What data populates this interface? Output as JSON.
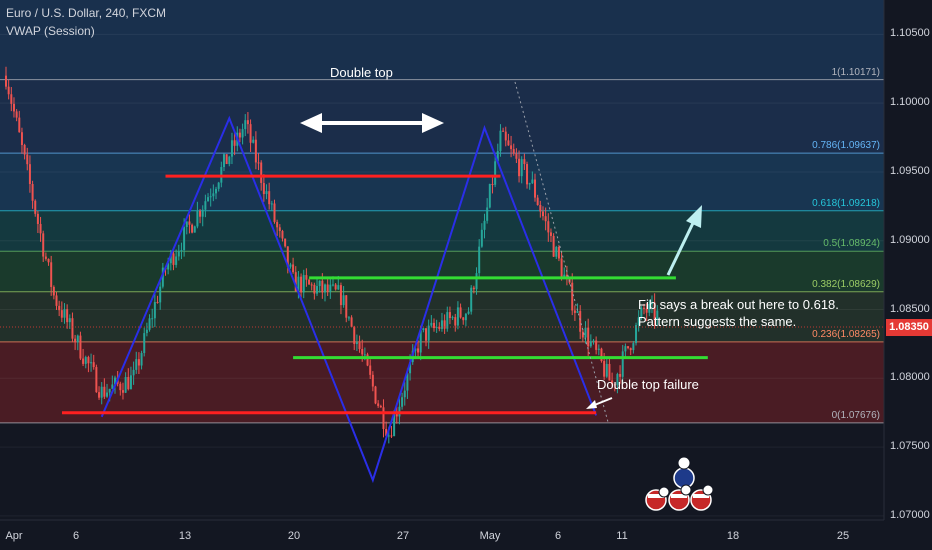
{
  "legend": {
    "title": "Euro / U.S. Dollar, 240, FXCM",
    "indicator": "VWAP (Session)"
  },
  "annotations": {
    "double_top": "Double top",
    "fib_note_1": "Fib says a break out here to 0.618.",
    "fib_note_2": "Pattern suggests the same.",
    "double_top_failure": "Double top failure"
  },
  "last_price": "1.08350",
  "colors": {
    "background": "#131722",
    "candle_up": "#26a69a",
    "candle_down": "#ef5350",
    "pattern_line": "#2a2ee8",
    "support_red": "#ff2020",
    "support_green": "#33dd33",
    "arrow": "#bdeff0"
  },
  "chart_data": {
    "type": "candlestick",
    "symbol": "Euro / U.S. Dollar, 240, FXCM",
    "x_ticks": [
      "Apr",
      "6",
      "13",
      "20",
      "27",
      "May",
      "6",
      "11",
      "18",
      "25"
    ],
    "y_ticks": [
      "1.10500",
      "1.10000",
      "1.09500",
      "1.09000",
      "1.08500",
      "1.08000",
      "1.07500",
      "1.07000"
    ],
    "ylim": [
      1.0697,
      1.1075
    ],
    "fib_levels": [
      {
        "ratio": 1,
        "price": 1.10171,
        "label": "1(1.10171)",
        "color": "#b2b5be"
      },
      {
        "ratio": 0.786,
        "price": 1.09637,
        "label": "0.786(1.09637)",
        "color": "#64b5f6"
      },
      {
        "ratio": 0.618,
        "price": 1.09218,
        "label": "0.618(1.09218)",
        "color": "#26c6da"
      },
      {
        "ratio": 0.5,
        "price": 1.08924,
        "label": "0.5(1.08924)",
        "color": "#66bb6a"
      },
      {
        "ratio": 0.382,
        "price": 1.08629,
        "label": "0.382(1.08629)",
        "color": "#9ccc65"
      },
      {
        "ratio": 0.236,
        "price": 1.08265,
        "label": "0.236(1.08265)",
        "color": "#ff8a65"
      },
      {
        "ratio": 0,
        "price": 1.07676,
        "label": "0(1.07676)",
        "color": "#b2b5be"
      }
    ],
    "pattern_path": [
      {
        "date": "Apr 7",
        "price": 1.0772
      },
      {
        "date": "Apr 15",
        "price": 1.0989
      },
      {
        "date": "Apr 24",
        "price": 1.0726
      },
      {
        "date": "May 1",
        "price": 1.0982
      },
      {
        "date": "May 8",
        "price": 1.0773
      }
    ],
    "horizontal_lines": [
      {
        "price": 1.0947,
        "from": "Apr 11",
        "to": "May 2",
        "color": "red"
      },
      {
        "price": 1.0775,
        "from": "Apr 1",
        "to": "May 8",
        "color": "red"
      },
      {
        "price": 1.0873,
        "from": "Apr 20",
        "to": "May 13",
        "color": "green"
      },
      {
        "price": 1.0815,
        "from": "Apr 19",
        "to": "May 15",
        "color": "green"
      }
    ],
    "last_price": 1.0835,
    "grid": true
  }
}
